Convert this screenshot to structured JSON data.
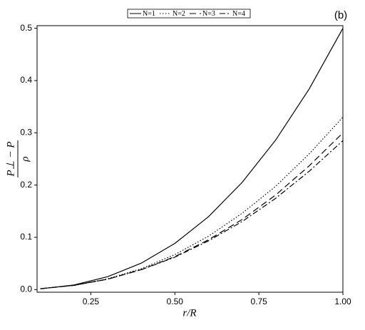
{
  "chart_data": {
    "type": "line",
    "annotation": "(b)",
    "xlabel": "r/R",
    "ylabel": {
      "numerator": "P⊥ − P",
      "denominator": "ρ"
    },
    "x": [
      0.1,
      0.2,
      0.3,
      0.4,
      0.5,
      0.6,
      0.7,
      0.8,
      0.9,
      1.0
    ],
    "series": [
      {
        "name": "N=1",
        "color": "#000000",
        "dash": "none",
        "values": [
          0.0016,
          0.0089,
          0.0247,
          0.0506,
          0.0884,
          0.1394,
          0.205,
          0.2862,
          0.3842,
          0.5
        ]
      },
      {
        "name": "N=2",
        "color": "#000000",
        "dash": "1.5 2.5",
        "values": [
          0.0017,
          0.0081,
          0.0207,
          0.04,
          0.067,
          0.1021,
          0.1459,
          0.1977,
          0.2598,
          0.33
        ]
      },
      {
        "name": "N=3",
        "color": "#000000",
        "dash": "9 5",
        "values": [
          0.0017,
          0.0081,
          0.0199,
          0.0382,
          0.0631,
          0.0953,
          0.1341,
          0.181,
          0.237,
          0.3
        ]
      },
      {
        "name": "N=4",
        "color": "#000000",
        "dash": "8 3 2 3",
        "values": [
          0.0018,
          0.0082,
          0.02,
          0.0381,
          0.062,
          0.0933,
          0.1302,
          0.1747,
          0.2266,
          0.285
        ]
      }
    ],
    "xlim": [
      0.09,
      1.0
    ],
    "ylim": [
      -0.005,
      0.505
    ],
    "xticks": [
      0.25,
      {
        "value": 0.5,
        "label": "0.50"
      },
      0.75,
      {
        "value": 1.0,
        "label": "1.00"
      }
    ],
    "yticks": [
      {
        "value": 0,
        "label": "0.0"
      },
      0.1,
      0.2,
      0.3,
      0.4,
      0.5
    ],
    "legend": "top"
  }
}
